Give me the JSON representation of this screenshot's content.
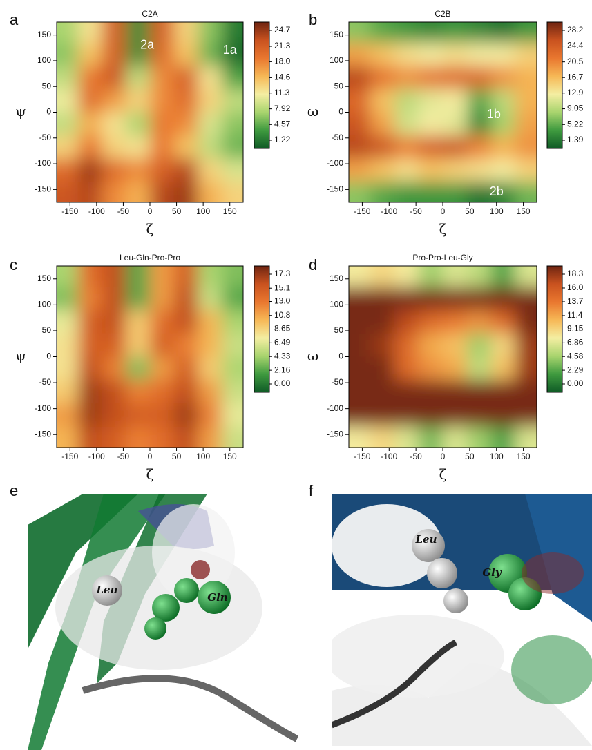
{
  "chart_data": [
    {
      "type": "heatmap",
      "panel": "a",
      "title": "C2A",
      "xlabel": "ζ",
      "ylabel": "ψ",
      "xlim": [
        -175,
        175
      ],
      "ylim": [
        -175,
        175
      ],
      "xticks": [
        -150,
        -100,
        -50,
        0,
        50,
        100,
        150
      ],
      "yticks": [
        -150,
        -100,
        -50,
        0,
        50,
        100,
        150
      ],
      "x": [
        -157.5,
        -112.5,
        -67.5,
        -22.5,
        22.5,
        67.5,
        112.5,
        157.5
      ],
      "y": [
        157.5,
        112.5,
        67.5,
        22.5,
        -22.5,
        -67.5,
        -112.5,
        -157.5
      ],
      "z": [
        [
          8,
          12,
          20,
          4,
          20,
          13,
          7,
          3
        ],
        [
          7,
          14,
          20,
          4,
          19,
          14,
          6,
          2
        ],
        [
          9,
          18,
          21,
          9,
          17,
          20,
          12,
          5
        ],
        [
          11,
          19,
          16,
          13,
          17,
          19,
          13,
          9
        ],
        [
          9,
          15,
          12,
          8,
          18,
          17,
          10,
          7
        ],
        [
          13,
          18,
          13,
          12,
          18,
          14,
          9,
          6
        ],
        [
          19,
          23,
          19,
          17,
          20,
          22,
          13,
          10
        ],
        [
          21,
          22,
          17,
          15,
          22,
          23,
          15,
          13
        ]
      ],
      "zlim": [
        1.22,
        24.7
      ],
      "colorbar_ticks": [
        24.7,
        21.3,
        {
          "value": 18,
          "label": "18.0"
        },
        14.6,
        11.3,
        7.92,
        4.57,
        1.22
      ],
      "colormap": [
        "#0f5a26",
        "#3f9a3f",
        "#a8d46e",
        "#f4eea2",
        "#f6b856",
        "#e9772f",
        "#c9521f",
        "#6e2411"
      ],
      "annotations": [
        {
          "text": "2a",
          "x": -5,
          "y": 130
        },
        {
          "text": "1a",
          "x": 150,
          "y": 120
        }
      ]
    },
    {
      "type": "heatmap",
      "panel": "b",
      "title": "C2B",
      "xlabel": "ζ",
      "ylabel": "ω",
      "xlim": [
        -175,
        175
      ],
      "ylim": [
        -175,
        175
      ],
      "xticks": [
        -150,
        -100,
        -50,
        0,
        50,
        100,
        150
      ],
      "yticks": [
        -150,
        -100,
        -50,
        0,
        50,
        100,
        150
      ],
      "x": [
        -157.5,
        -112.5,
        -67.5,
        -22.5,
        22.5,
        67.5,
        112.5,
        157.5
      ],
      "y": [
        157.5,
        112.5,
        67.5,
        22.5,
        -22.5,
        -67.5,
        -112.5,
        -157.5
      ],
      "z": [
        [
          8,
          6,
          5,
          4,
          5,
          4,
          3,
          5
        ],
        [
          18,
          16,
          14,
          13,
          14,
          13,
          13,
          15
        ],
        [
          25,
          21,
          19,
          21,
          22,
          22,
          19,
          17
        ],
        [
          22,
          16,
          10,
          12,
          13,
          6,
          10,
          17
        ],
        [
          24,
          18,
          11,
          13,
          12,
          4,
          9,
          18
        ],
        [
          25,
          24,
          20,
          23,
          24,
          20,
          17,
          19
        ],
        [
          18,
          16,
          14,
          16,
          15,
          14,
          13,
          15
        ],
        [
          8,
          6,
          5,
          5,
          5,
          3,
          4,
          7
        ]
      ],
      "zlim": [
        1.39,
        28.2
      ],
      "colorbar_ticks": [
        28.2,
        24.4,
        20.5,
        16.7,
        12.9,
        9.05,
        5.22,
        1.39
      ],
      "colormap": [
        "#0f5a26",
        "#3f9a3f",
        "#a8d46e",
        "#f4eea2",
        "#f6b856",
        "#e9772f",
        "#c9521f",
        "#6e2411"
      ],
      "annotations": [
        {
          "text": "1b",
          "x": 95,
          "y": -5
        },
        {
          "text": "2b",
          "x": 100,
          "y": -155
        }
      ]
    },
    {
      "type": "heatmap",
      "panel": "c",
      "title": "Leu-Gln-Pro-Pro",
      "xlabel": "ζ",
      "ylabel": "ψ",
      "xlim": [
        -175,
        175
      ],
      "ylim": [
        -175,
        175
      ],
      "xticks": [
        -150,
        -100,
        -50,
        0,
        50,
        100,
        150
      ],
      "yticks": [
        -150,
        -100,
        -50,
        0,
        50,
        100,
        150
      ],
      "x": [
        -157.5,
        -112.5,
        -67.5,
        -22.5,
        22.5,
        67.5,
        112.5,
        157.5
      ],
      "y": [
        157.5,
        112.5,
        67.5,
        22.5,
        -22.5,
        -67.5,
        -112.5,
        -157.5
      ],
      "z": [
        [
          5,
          13,
          15,
          3,
          11,
          14,
          5,
          4
        ],
        [
          4,
          12,
          15,
          3,
          11,
          15,
          6,
          3
        ],
        [
          7,
          14,
          15,
          9,
          13,
          15,
          10,
          5
        ],
        [
          8,
          14,
          14,
          9,
          14,
          12,
          10,
          6
        ],
        [
          8,
          15,
          12,
          4,
          11,
          14,
          9,
          5
        ],
        [
          9,
          16,
          15,
          12,
          13,
          15,
          11,
          6
        ],
        [
          11,
          16,
          15,
          14,
          14,
          16,
          12,
          7
        ],
        [
          10,
          15,
          14,
          12,
          13,
          15,
          11,
          6
        ]
      ],
      "zlim": [
        0,
        17.3
      ],
      "colorbar_ticks": [
        17.3,
        15.1,
        {
          "value": 13,
          "label": "13.0"
        },
        10.8,
        8.65,
        6.49,
        4.33,
        2.16,
        {
          "value": 0,
          "label": "0.00"
        }
      ],
      "colormap": [
        "#0f5a26",
        "#3f9a3f",
        "#a8d46e",
        "#f4eea2",
        "#f6b856",
        "#e9772f",
        "#c9521f",
        "#6e2411"
      ],
      "annotations": []
    },
    {
      "type": "heatmap",
      "panel": "d",
      "title": "Pro-Pro-Leu-Gly",
      "xlabel": "ζ",
      "ylabel": "ω",
      "xlim": [
        -175,
        175
      ],
      "ylim": [
        -175,
        175
      ],
      "xticks": [
        -150,
        -100,
        -50,
        0,
        50,
        100,
        150
      ],
      "yticks": [
        -150,
        -100,
        -50,
        0,
        50,
        100,
        150
      ],
      "x": [
        -157.5,
        -112.5,
        -67.5,
        -22.5,
        22.5,
        67.5,
        112.5,
        157.5
      ],
      "y": [
        157.5,
        112.5,
        67.5,
        22.5,
        -22.5,
        -67.5,
        -112.5,
        -157.5
      ],
      "z": [
        [
          8,
          9,
          8,
          5,
          7,
          6,
          3,
          7
        ],
        [
          18,
          18,
          18,
          18,
          18,
          18,
          18,
          18
        ],
        [
          18,
          18,
          16,
          14,
          13,
          12,
          14,
          18
        ],
        [
          18,
          17,
          14,
          11,
          10,
          5,
          9,
          17
        ],
        [
          18,
          18,
          14,
          12,
          11,
          6,
          10,
          17
        ],
        [
          18,
          18,
          18,
          18,
          18,
          18,
          18,
          18
        ],
        [
          18,
          18,
          18,
          18,
          18,
          18,
          18,
          18
        ],
        [
          8,
          9,
          7,
          4,
          7,
          5,
          3,
          7
        ]
      ],
      "zlim": [
        0,
        18.3
      ],
      "colorbar_ticks": [
        18.3,
        {
          "value": 16,
          "label": "16.0"
        },
        13.7,
        11.4,
        9.15,
        6.86,
        4.58,
        2.29,
        {
          "value": 0,
          "label": "0.00"
        }
      ],
      "colormap": [
        "#0f5a26",
        "#3f9a3f",
        "#a8d46e",
        "#f4eea2",
        "#f6b856",
        "#e9772f",
        "#c9521f",
        "#6e2411"
      ],
      "annotations": []
    }
  ],
  "images": [
    {
      "panel": "e",
      "labels": [
        "Leu",
        "Gln"
      ]
    },
    {
      "panel": "f",
      "labels": [
        "Leu",
        "Gly"
      ]
    }
  ]
}
